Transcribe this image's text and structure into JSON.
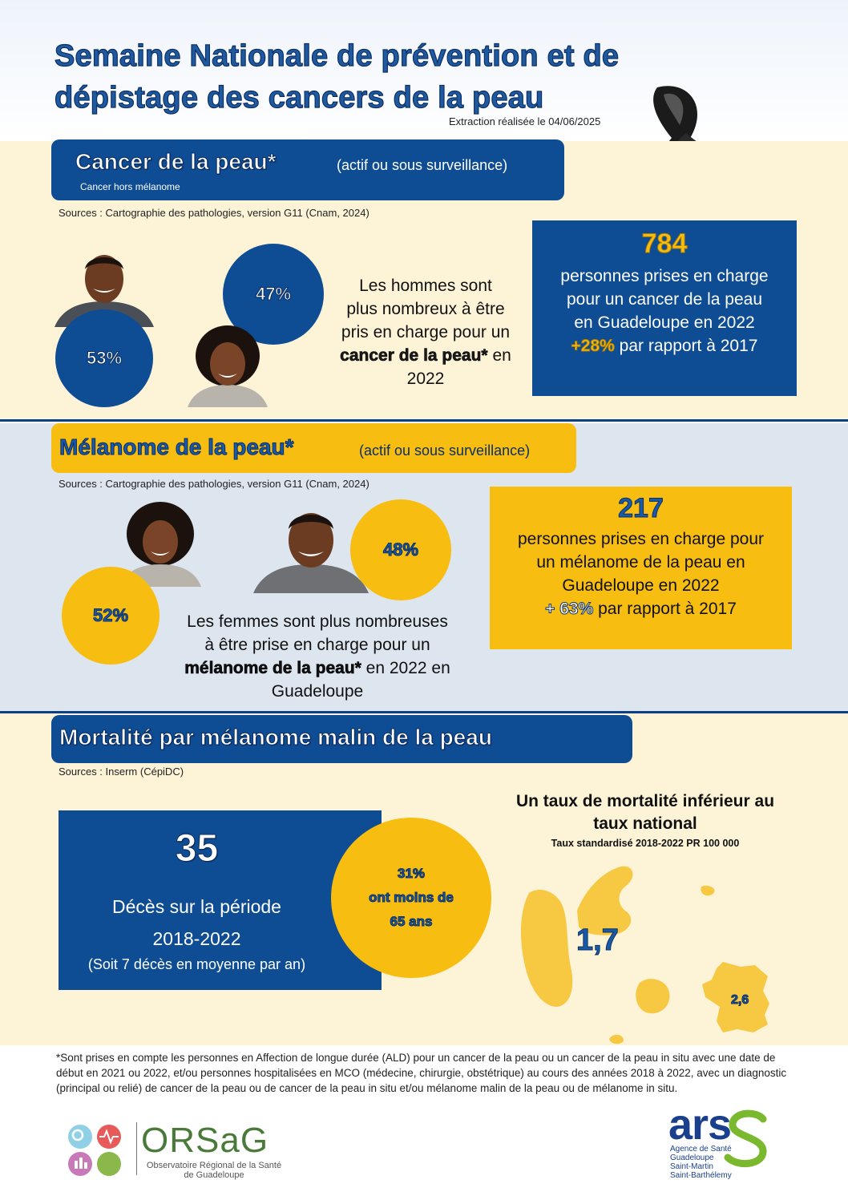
{
  "header": {
    "title_line1": "Semaine Nationale de prévention et de",
    "title_line2": "dépistage des cancers de la peau",
    "extraction": "Extraction réalisée le 04/06/2025",
    "ribbon_icon": "black-awareness-ribbon-icon"
  },
  "section1": {
    "heading": "Cancer de la peau*",
    "heading_note": "(actif ou sous surveillance)",
    "subheading": "Cancer hors mélanome",
    "sources": "Sources :  Cartographie des pathologies, version G11 (Cnam, 2024)",
    "men_pct": "53%",
    "women_pct": "47%",
    "text_line1": "Les hommes sont",
    "text_line2": "plus nombreux à être",
    "text_line3": "pris en charge pour  un",
    "text_emph": "cancer de la peau*",
    "text_line4_suffix": " en",
    "text_line5": "2022",
    "box_number": "784",
    "box_line1": "personnes prises en charge",
    "box_line2": "pour un cancer de la peau",
    "box_line3": "en Guadeloupe en 2022",
    "box_change": "+28%",
    "box_change_suffix": " par rapport à 2017"
  },
  "section2": {
    "heading": "Mélanome de la peau*",
    "heading_note": "(actif ou sous surveillance)",
    "sources": "Sources :  Cartographie des pathologies, version G11 (Cnam, 2024)",
    "women_pct": "52%",
    "men_pct": "48%",
    "text_line1": "Les femmes sont plus nombreuses",
    "text_line2": "à être prise en charge pour un",
    "text_emph": "mélanome de la peau*",
    "text_line3_suffix": " en 2022 en",
    "text_line4": "Guadeloupe",
    "box_number": "217",
    "box_line1": "personnes prises en charge pour",
    "box_line2": "un mélanome de la peau en",
    "box_line3": "Guadeloupe en 2022",
    "box_change": "+ 63%",
    "box_change_suffix": " par rapport à 2017"
  },
  "section3": {
    "heading": "Mortalité par mélanome malin de la peau",
    "sources": "Sources :  Inserm (CépiDC)",
    "deaths_number": "35",
    "deaths_line1": "Décès sur la période",
    "deaths_line2": "2018-2022",
    "deaths_line3": "(Soit 7 décès en moyenne par an)",
    "under65_pct": "31%",
    "under65_line1": "ont moins de",
    "under65_line2": "65 ans",
    "rate_title_line1": "Un taux de mortalité inférieur au",
    "rate_title_line2": "taux national",
    "rate_subtitle": "Taux standardisé 2018-2022 PR 100 000",
    "rate_guadeloupe": "1,7",
    "rate_france": "2,6",
    "map_color": "#f7c842"
  },
  "footer": {
    "footnote": "*Sont prises en compte les personnes en Affection de longue durée (ALD) pour un cancer de la peau ou un cancer de la peau in situ avec une date de début en 2021 ou 2022, et/ou personnes hospitalisées en MCO (médecine, chirurgie, obstétrique) au cours des années 2018 à 2022, avec un diagnostic (principal ou relié) de cancer de la peau ou de cancer de la peau in situ et/ou mélanome malin de la peau ou de mélanome in situ.",
    "orsag_name": "ORSaG",
    "orsag_sub1": "Observatoire Régional de la Santé",
    "orsag_sub2": "de Guadeloupe",
    "ars_name": "ars",
    "ars_sub1": "Agence de Santé",
    "ars_sub2": "Guadeloupe",
    "ars_sub3": "Saint-Martin",
    "ars_sub4": "Saint-Barthélemy"
  },
  "colors": {
    "blue": "#0e4c93",
    "yellow": "#f7bd10",
    "cream": "#fdf4d8",
    "pale_blue": "#dde5ef"
  }
}
